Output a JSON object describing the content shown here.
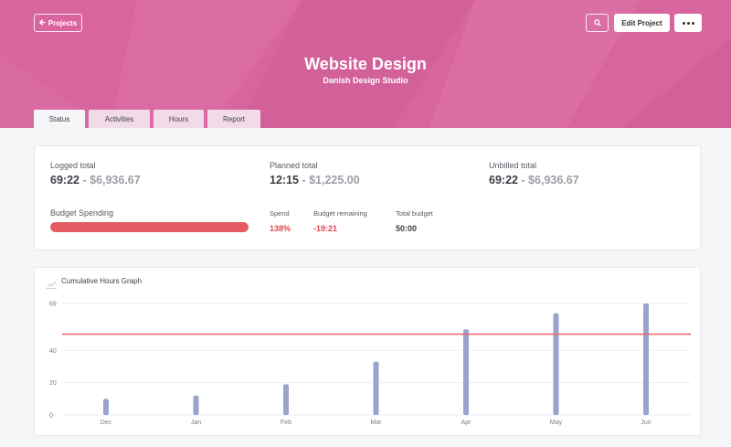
{
  "header": {
    "back_label": "Projects",
    "edit_label": "Edit Project",
    "title": "Website Design",
    "subtitle": "Danish Design Studio",
    "bg_color": "#d9659f"
  },
  "tabs": [
    {
      "label": "Status",
      "active": true
    },
    {
      "label": "Activities",
      "active": false
    },
    {
      "label": "Hours",
      "active": false
    },
    {
      "label": "Report",
      "active": false
    }
  ],
  "summary": {
    "logged": {
      "label": "Logged total",
      "hours": "69:22",
      "amount": " - $6,936.67"
    },
    "planned": {
      "label": "Planned total",
      "hours": "12:15",
      "amount": " - $1,225.00"
    },
    "unbilled": {
      "label": "Unbilled total",
      "hours": "69:22",
      "amount": " - $6,936.67"
    },
    "budget": {
      "label": "Budget Spending",
      "spend_label": "Spend",
      "spend_value": "138%",
      "remaining_label": "Budget remaining",
      "remaining_value": "-19:21",
      "total_label": "Total budget",
      "total_value": "50:00",
      "fill_fraction": 1.0,
      "bar_color": "#e65b63"
    }
  },
  "graph": {
    "title": "Cumulative Hours Graph"
  },
  "chart_data": {
    "type": "bar",
    "categories": [
      "Dec",
      "Jan",
      "Feb",
      "Mar",
      "Apr",
      "May",
      "Jun"
    ],
    "values": [
      10,
      12,
      19,
      33,
      53,
      63,
      69
    ],
    "reference_line": 50,
    "ytick_labels": [
      {
        "value": 0,
        "label": "0"
      },
      {
        "value": 20,
        "label": "20"
      },
      {
        "value": 40,
        "label": "40"
      },
      {
        "value": 69,
        "label": "69"
      }
    ],
    "ylim": [
      0,
      69
    ],
    "bar_color": "#9aa3cc",
    "line_color": "#e8676d",
    "grid": true
  }
}
